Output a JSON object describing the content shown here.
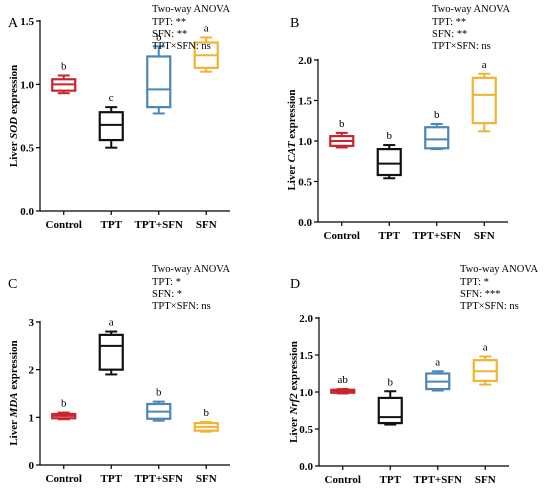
{
  "chart_data": [
    {
      "panel": "A",
      "type": "boxplot",
      "ylabel_prefix": "Liver ",
      "ylabel_gene": "SOD",
      "ylabel_suffix": " expression",
      "ylim": [
        0,
        1.5
      ],
      "yticks": [
        "0.0",
        "0.5",
        "1.0",
        "1.5"
      ],
      "categories": [
        "Control",
        "TPT",
        "TPT+SFN",
        "SFN"
      ],
      "colors": [
        "#c8262c",
        "#111111",
        "#4a86b8",
        "#f2b233"
      ],
      "boxes": [
        {
          "min": 0.93,
          "q1": 0.95,
          "median": 1.0,
          "q3": 1.04,
          "max": 1.07
        },
        {
          "min": 0.5,
          "q1": 0.56,
          "median": 0.68,
          "q3": 0.78,
          "max": 0.82
        },
        {
          "min": 0.77,
          "q1": 0.82,
          "median": 0.96,
          "q3": 1.22,
          "max": 1.3
        },
        {
          "min": 1.1,
          "q1": 1.13,
          "median": 1.23,
          "q3": 1.33,
          "max": 1.37
        }
      ],
      "letters": [
        "b",
        "c",
        "b",
        "a"
      ],
      "anova": [
        "Two-way ANOVA",
        "TPT: **",
        "SFN: **",
        "TPT×SFN: ns"
      ]
    },
    {
      "panel": "B",
      "type": "boxplot",
      "ylabel_prefix": "Liver ",
      "ylabel_gene": "CAT",
      "ylabel_suffix": " expression",
      "ylim": [
        0,
        2.0
      ],
      "yticks": [
        "0.0",
        "0.5",
        "1.0",
        "1.5",
        "2.0"
      ],
      "categories": [
        "Control",
        "TPT",
        "TPT+SFN",
        "SFN"
      ],
      "colors": [
        "#c8262c",
        "#111111",
        "#4a86b8",
        "#f2b233"
      ],
      "boxes": [
        {
          "min": 0.92,
          "q1": 0.94,
          "median": 1.0,
          "q3": 1.06,
          "max": 1.1
        },
        {
          "min": 0.54,
          "q1": 0.58,
          "median": 0.72,
          "q3": 0.9,
          "max": 0.95
        },
        {
          "min": 0.9,
          "q1": 0.91,
          "median": 1.02,
          "q3": 1.17,
          "max": 1.21
        },
        {
          "min": 1.12,
          "q1": 1.22,
          "median": 1.57,
          "q3": 1.78,
          "max": 1.83
        }
      ],
      "letters": [
        "b",
        "b",
        "b",
        "a"
      ],
      "anova": [
        "Two-way ANOVA",
        "TPT: **",
        "SFN: **",
        "TPT×SFN: ns"
      ]
    },
    {
      "panel": "C",
      "type": "boxplot",
      "ylabel_prefix": "Liver ",
      "ylabel_gene": "MDA",
      "ylabel_suffix": " expression",
      "ylim": [
        0,
        3
      ],
      "yticks": [
        "0",
        "1",
        "2",
        "3"
      ],
      "categories": [
        "Control",
        "TPT",
        "TPT+SFN",
        "SFN"
      ],
      "colors": [
        "#c8262c",
        "#111111",
        "#4a86b8",
        "#f2b233"
      ],
      "boxes": [
        {
          "min": 0.96,
          "q1": 0.98,
          "median": 1.03,
          "q3": 1.07,
          "max": 1.1
        },
        {
          "min": 1.9,
          "q1": 2.0,
          "median": 2.5,
          "q3": 2.73,
          "max": 2.8
        },
        {
          "min": 0.93,
          "q1": 0.97,
          "median": 1.12,
          "q3": 1.28,
          "max": 1.33
        },
        {
          "min": 0.7,
          "q1": 0.72,
          "median": 0.8,
          "q3": 0.88,
          "max": 0.9
        }
      ],
      "letters": [
        "b",
        "a",
        "b",
        "b"
      ],
      "anova": [
        "Two-way ANOVA",
        "TPT: *",
        "SFN: *",
        "TPT×SFN: ns"
      ]
    },
    {
      "panel": "D",
      "type": "boxplot",
      "ylabel_prefix": "Liver ",
      "ylabel_gene": "Nrf2",
      "ylabel_suffix": " expression",
      "ylim": [
        0,
        2.0
      ],
      "yticks": [
        "0.0",
        "0.5",
        "1.0",
        "1.5",
        "2.0"
      ],
      "categories": [
        "Control",
        "TPT",
        "TPT+SFN",
        "SFN"
      ],
      "colors": [
        "#c8262c",
        "#111111",
        "#4a86b8",
        "#f2b233"
      ],
      "boxes": [
        {
          "min": 0.98,
          "q1": 0.99,
          "median": 1.01,
          "q3": 1.03,
          "max": 1.04
        },
        {
          "min": 0.56,
          "q1": 0.58,
          "median": 0.66,
          "q3": 0.92,
          "max": 1.01
        },
        {
          "min": 1.02,
          "q1": 1.04,
          "median": 1.14,
          "q3": 1.25,
          "max": 1.28
        },
        {
          "min": 1.1,
          "q1": 1.15,
          "median": 1.28,
          "q3": 1.43,
          "max": 1.48
        }
      ],
      "letters": [
        "ab",
        "b",
        "a",
        "a"
      ],
      "anova": [
        "Two-way ANOVA",
        "TPT: *",
        "SFN: ***",
        "TPT×SFN: ns"
      ]
    }
  ]
}
